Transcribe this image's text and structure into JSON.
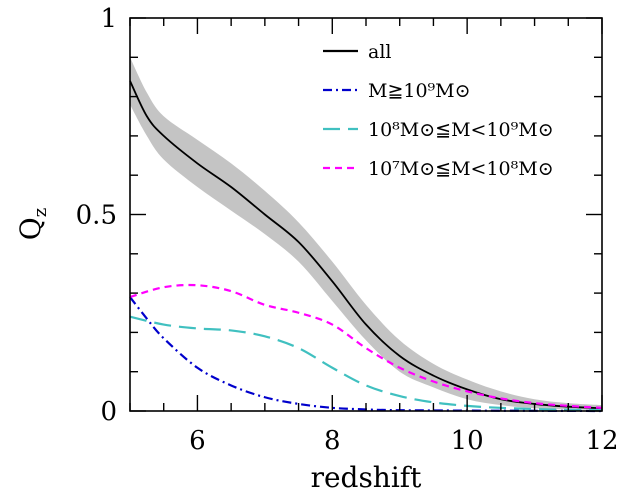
{
  "chart_data": {
    "type": "line",
    "xlabel": "redshift",
    "ylabel": "Q",
    "ylabel_sub": "z",
    "xlim": [
      5,
      12
    ],
    "ylim": [
      0,
      1
    ],
    "x_ticks": [
      6,
      8,
      10,
      12
    ],
    "x_tick_labels": [
      "6",
      "8",
      "10",
      "12"
    ],
    "y_ticks": [
      0,
      0.5,
      1
    ],
    "y_tick_labels": [
      "0",
      "0.5",
      "1"
    ],
    "grid": false,
    "legend_position": "top-right",
    "band": {
      "x": [
        5.0,
        5.25,
        5.5,
        6.0,
        6.5,
        7.0,
        7.5,
        8.0,
        8.5,
        9.0,
        9.5,
        10.0,
        10.5,
        11.0,
        11.5,
        12.0
      ],
      "upper": [
        0.9,
        0.81,
        0.75,
        0.69,
        0.63,
        0.56,
        0.48,
        0.38,
        0.27,
        0.18,
        0.12,
        0.08,
        0.05,
        0.03,
        0.02,
        0.015
      ],
      "lower": [
        0.78,
        0.7,
        0.64,
        0.57,
        0.51,
        0.45,
        0.38,
        0.28,
        0.18,
        0.1,
        0.06,
        0.03,
        0.015,
        0.007,
        0.004,
        0.002
      ]
    },
    "series": [
      {
        "name": "all",
        "color": "#000000",
        "dash": "solid",
        "x": [
          5.0,
          5.25,
          5.5,
          6.0,
          6.5,
          7.0,
          7.5,
          8.0,
          8.5,
          9.0,
          9.5,
          10.0,
          10.5,
          11.0,
          11.5,
          12.0
        ],
        "y": [
          0.84,
          0.75,
          0.7,
          0.63,
          0.57,
          0.5,
          0.43,
          0.33,
          0.22,
          0.14,
          0.09,
          0.055,
          0.03,
          0.018,
          0.011,
          0.007
        ]
      },
      {
        "name": "M≧10⁹M⊙",
        "color": "#0000cc",
        "dash": "dashdot",
        "x": [
          5.0,
          5.25,
          5.5,
          6.0,
          6.5,
          7.0,
          7.5,
          8.0,
          8.5,
          9.0,
          10.0,
          11.0,
          12.0
        ],
        "y": [
          0.29,
          0.235,
          0.185,
          0.11,
          0.065,
          0.035,
          0.018,
          0.008,
          0.004,
          0.002,
          0.001,
          0.0005,
          0.0
        ]
      },
      {
        "name": "10⁸M⊙≦M<10⁹M⊙",
        "color": "#40c0c0",
        "dash": "longdash",
        "x": [
          5.0,
          5.5,
          6.0,
          6.5,
          7.0,
          7.5,
          8.0,
          8.5,
          9.0,
          9.5,
          10.0,
          10.5,
          11.0,
          11.5,
          12.0
        ],
        "y": [
          0.24,
          0.22,
          0.21,
          0.205,
          0.19,
          0.16,
          0.11,
          0.065,
          0.038,
          0.022,
          0.013,
          0.008,
          0.005,
          0.003,
          0.002
        ]
      },
      {
        "name": "10⁷M⊙≦M<10⁸M⊙",
        "color": "#ff00ff",
        "dash": "shortdash",
        "x": [
          5.0,
          5.5,
          6.0,
          6.5,
          7.0,
          7.5,
          8.0,
          8.5,
          9.0,
          9.5,
          10.0,
          10.5,
          11.0,
          11.5,
          12.0
        ],
        "y": [
          0.29,
          0.315,
          0.32,
          0.305,
          0.27,
          0.25,
          0.22,
          0.16,
          0.11,
          0.075,
          0.05,
          0.032,
          0.02,
          0.013,
          0.008
        ]
      }
    ]
  }
}
